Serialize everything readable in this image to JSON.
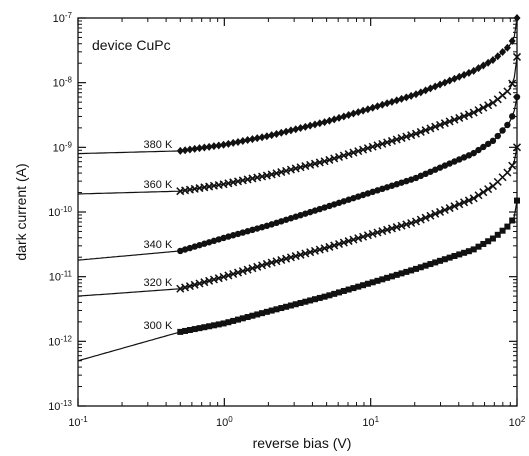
{
  "chart_data": {
    "type": "line",
    "title": "",
    "annotation": "device CuPc",
    "xlabel": "reverse bias (V)",
    "ylabel": "dark current (A)",
    "xscale": "log",
    "yscale": "log",
    "xlim": [
      0.1,
      100
    ],
    "ylim": [
      1e-13,
      1e-07
    ],
    "grid": false,
    "x_ticks": [
      {
        "value": 0.1,
        "base": "10",
        "exp": "-1"
      },
      {
        "value": 1,
        "base": "10",
        "exp": "0"
      },
      {
        "value": 10,
        "base": "10",
        "exp": "1"
      },
      {
        "value": 100,
        "base": "10",
        "exp": "2"
      }
    ],
    "y_ticks": [
      {
        "value": 1e-13,
        "base": "10",
        "exp": "-13"
      },
      {
        "value": 1e-12,
        "base": "10",
        "exp": "-12"
      },
      {
        "value": 1e-11,
        "base": "10",
        "exp": "-11"
      },
      {
        "value": 1e-10,
        "base": "10",
        "exp": "-10"
      },
      {
        "value": 1e-09,
        "base": "10",
        "exp": "-9"
      },
      {
        "value": 1e-08,
        "base": "10",
        "exp": "-8"
      },
      {
        "value": 1e-07,
        "base": "10",
        "exp": "-7"
      }
    ],
    "series": [
      {
        "name": "380 K",
        "marker": "diamond",
        "x": [
          0.1,
          0.5,
          1,
          2,
          5,
          10,
          20,
          50,
          70,
          90,
          97,
          100
        ],
        "y": [
          8e-10,
          8.8e-10,
          1.1e-09,
          1.5e-09,
          2.5e-09,
          4e-09,
          6.5e-09,
          1.5e-08,
          2.3e-08,
          3.8e-08,
          5.5e-08,
          1e-07
        ]
      },
      {
        "name": "360 K",
        "marker": "cross",
        "x": [
          0.1,
          0.5,
          1,
          2,
          5,
          10,
          20,
          50,
          70,
          90,
          97,
          100
        ],
        "y": [
          1.9e-10,
          2.1e-10,
          2.7e-10,
          3.7e-10,
          6.2e-10,
          1e-09,
          1.6e-09,
          3.4e-09,
          5e-09,
          8e-09,
          1.3e-08,
          2.5e-08
        ]
      },
      {
        "name": "340 K",
        "marker": "circle",
        "x": [
          0.1,
          0.5,
          1,
          2,
          5,
          10,
          20,
          50,
          70,
          90,
          97,
          100
        ],
        "y": [
          1.8e-11,
          2.5e-11,
          4e-11,
          6.2e-11,
          1.2e-10,
          2e-10,
          3.3e-10,
          8e-10,
          1.3e-09,
          2.5e-09,
          4e-09,
          6e-09
        ]
      },
      {
        "name": "320 K",
        "marker": "cross",
        "x": [
          0.1,
          0.5,
          1,
          2,
          5,
          10,
          20,
          50,
          70,
          90,
          97,
          100
        ],
        "y": [
          5e-12,
          6.5e-12,
          1e-11,
          1.6e-11,
          2.8e-11,
          4.5e-11,
          7e-11,
          1.6e-10,
          2.6e-10,
          4.5e-10,
          6.5e-10,
          1e-09
        ]
      },
      {
        "name": "300 K",
        "marker": "square",
        "x": [
          0.1,
          0.5,
          1,
          2,
          5,
          10,
          20,
          50,
          70,
          90,
          97,
          100
        ],
        "y": [
          5e-13,
          1.4e-12,
          1.9e-12,
          2.9e-12,
          5e-12,
          8e-12,
          1.3e-11,
          2.6e-11,
          4e-11,
          6.5e-11,
          9e-11,
          1.5e-10
        ]
      }
    ]
  }
}
